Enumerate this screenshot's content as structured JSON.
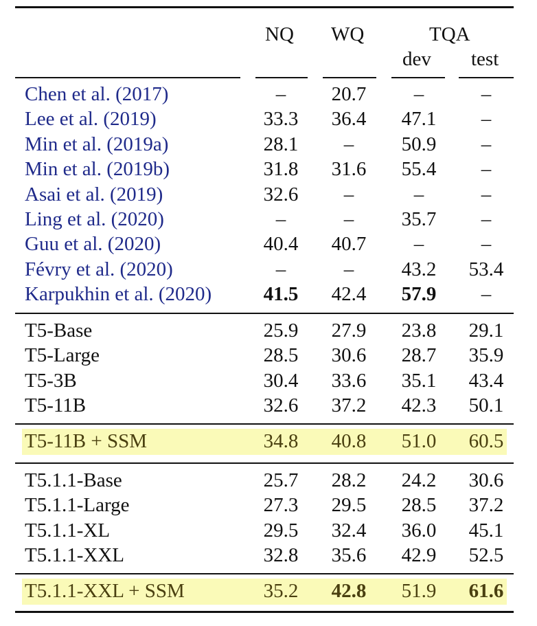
{
  "header": {
    "nq": "NQ",
    "wq": "WQ",
    "tqa": "TQA",
    "dev": "dev",
    "test": "test"
  },
  "colors": {
    "citation": "#1f2a8a",
    "highlight": "#fafab8",
    "text": "#111111"
  },
  "groups": [
    {
      "rows": [
        {
          "name": "Chen et al. (2017)",
          "link": true,
          "nq": "–",
          "wq": "20.7",
          "dev": "–",
          "test": "–",
          "bold": []
        },
        {
          "name": "Lee et al. (2019)",
          "link": true,
          "nq": "33.3",
          "wq": "36.4",
          "dev": "47.1",
          "test": "–",
          "bold": []
        },
        {
          "name": "Min et al. (2019a)",
          "link": true,
          "nq": "28.1",
          "wq": "–",
          "dev": "50.9",
          "test": "–",
          "bold": []
        },
        {
          "name": "Min et al. (2019b)",
          "link": true,
          "nq": "31.8",
          "wq": "31.6",
          "dev": "55.4",
          "test": "–",
          "bold": []
        },
        {
          "name": "Asai et al. (2019)",
          "link": true,
          "nq": "32.6",
          "wq": "–",
          "dev": "–",
          "test": "–",
          "bold": []
        },
        {
          "name": "Ling et al. (2020)",
          "link": true,
          "nq": "–",
          "wq": "–",
          "dev": "35.7",
          "test": "–",
          "bold": []
        },
        {
          "name": "Guu et al. (2020)",
          "link": true,
          "nq": "40.4",
          "wq": "40.7",
          "dev": "–",
          "test": "–",
          "bold": []
        },
        {
          "name": "Févry et al. (2020)",
          "link": true,
          "nq": "–",
          "wq": "–",
          "dev": "43.2",
          "test": "53.4",
          "bold": []
        },
        {
          "name": "Karpukhin et al. (2020)",
          "link": true,
          "nq": "41.5",
          "wq": "42.4",
          "dev": "57.9",
          "test": "–",
          "bold": [
            "nq",
            "dev"
          ]
        }
      ]
    },
    {
      "rows": [
        {
          "name": "T5-Base",
          "link": false,
          "nq": "25.9",
          "wq": "27.9",
          "dev": "23.8",
          "test": "29.1",
          "bold": []
        },
        {
          "name": "T5-Large",
          "link": false,
          "nq": "28.5",
          "wq": "30.6",
          "dev": "28.7",
          "test": "35.9",
          "bold": []
        },
        {
          "name": "T5-3B",
          "link": false,
          "nq": "30.4",
          "wq": "33.6",
          "dev": "35.1",
          "test": "43.4",
          "bold": []
        },
        {
          "name": "T5-11B",
          "link": false,
          "nq": "32.6",
          "wq": "37.2",
          "dev": "42.3",
          "test": "50.1",
          "bold": []
        }
      ]
    },
    {
      "highlight": true,
      "rows": [
        {
          "name": "T5-11B + SSM",
          "link": false,
          "nq": "34.8",
          "wq": "40.8",
          "dev": "51.0",
          "test": "60.5",
          "bold": []
        }
      ]
    },
    {
      "rows": [
        {
          "name": "T5.1.1-Base",
          "link": false,
          "nq": "25.7",
          "wq": "28.2",
          "dev": "24.2",
          "test": "30.6",
          "bold": []
        },
        {
          "name": "T5.1.1-Large",
          "link": false,
          "nq": "27.3",
          "wq": "29.5",
          "dev": "28.5",
          "test": "37.2",
          "bold": []
        },
        {
          "name": "T5.1.1-XL",
          "link": false,
          "nq": "29.5",
          "wq": "32.4",
          "dev": "36.0",
          "test": "45.1",
          "bold": []
        },
        {
          "name": "T5.1.1-XXL",
          "link": false,
          "nq": "32.8",
          "wq": "35.6",
          "dev": "42.9",
          "test": "52.5",
          "bold": []
        }
      ]
    },
    {
      "highlight": true,
      "rows": [
        {
          "name": "T5.1.1-XXL + SSM",
          "link": false,
          "nq": "35.2",
          "wq": "42.8",
          "dev": "51.9",
          "test": "61.6",
          "bold": [
            "wq",
            "test"
          ]
        }
      ]
    }
  ]
}
